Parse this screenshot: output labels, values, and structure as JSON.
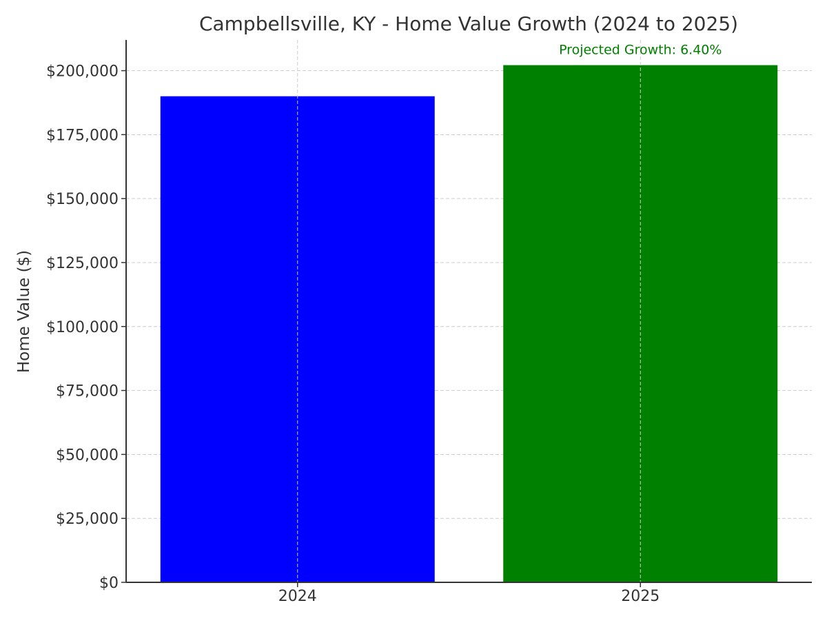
{
  "chart_data": {
    "type": "bar",
    "title": "Campbellsville, KY - Home Value Growth (2024 to 2025)",
    "xlabel": "",
    "ylabel": "Home Value ($)",
    "categories": [
      "2024",
      "2025"
    ],
    "values": [
      190000,
      202160
    ],
    "bar_colors": [
      "#0000ff",
      "#008000"
    ],
    "ylim": [
      0,
      212000
    ],
    "yticks": [
      0,
      25000,
      50000,
      75000,
      100000,
      125000,
      150000,
      175000,
      200000
    ],
    "ytick_labels": [
      "$0",
      "$25,000",
      "$50,000",
      "$75,000",
      "$100,000",
      "$125,000",
      "$150,000",
      "$175,000",
      "$200,000"
    ],
    "grid": true,
    "annotations": [
      {
        "text": "Projected Growth: 6.40%",
        "color": "#008000",
        "category": "2025"
      }
    ]
  }
}
